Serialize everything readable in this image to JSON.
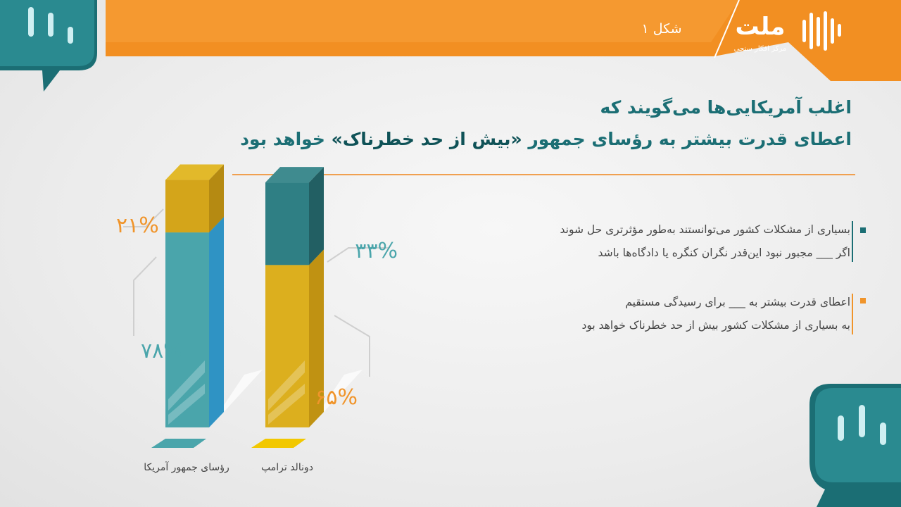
{
  "header": {
    "figure_label": "شکل ۱",
    "brand_name": "ملت",
    "brand_tagline": "مرکز افکار سنجی"
  },
  "title": {
    "line1": "اغلب آمریکایی‌ها می‌گویند که",
    "line2_before": "اعطای قدرت بیشتر به رؤسای جمهور",
    "line2_highlight": "«بیش از حد خطرناک»",
    "line2_after": "خواهد بود"
  },
  "legend": [
    {
      "line1": "بسیاری از مشکلات کشور می‌توانستند به‌طور مؤثرتری حل شوند",
      "line2": "اگر ___ مجبور نبود این‌قدر نگران کنگره یا دادگاه‌ها باشد",
      "color": "#1b6e74"
    },
    {
      "line1": "اعطای قدرت بیشتر به ___ برای رسیدگی مستقیم",
      "line2": "به بسیاری از مشکلات کشور بیش از حد خطرناک خواهد بود",
      "color": "#f0942a"
    }
  ],
  "colors": {
    "orange": "#f0942a",
    "teal": "#4aa5ab",
    "dark_teal": "#2f7f84",
    "yellow": "#dcaf1e"
  },
  "chart_data": {
    "type": "bar",
    "stacked": true,
    "categories": [
      "رؤسای جمهور آمریکا",
      "دونالد ترامپ"
    ],
    "series": [
      {
        "values": [
          78,
          65
        ],
        "value_labels": [
          "۷۸%",
          "۶۵%"
        ]
      },
      {
        "values": [
          21,
          33
        ],
        "value_labels": [
          "۲۱%",
          "۳۳%"
        ]
      }
    ],
    "ylim": [
      0,
      100
    ]
  }
}
